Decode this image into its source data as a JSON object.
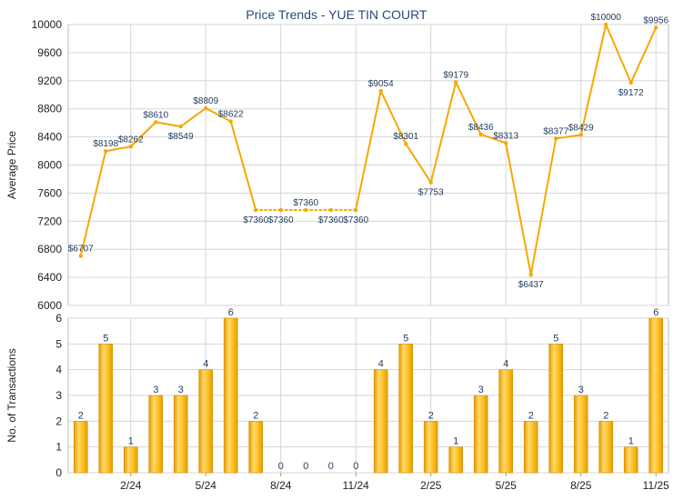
{
  "chart_data": [
    {
      "type": "line",
      "title": "Price Trends - YUE TIN COURT",
      "ylabel": "Average Price",
      "ylim": [
        6000,
        10000
      ],
      "yticks": [
        6000,
        6400,
        6800,
        7200,
        7600,
        8000,
        8400,
        8800,
        9200,
        9600,
        10000
      ],
      "grid": true,
      "series": [
        {
          "values": [
            6707,
            8198,
            8262,
            8610,
            8549,
            8809,
            8622,
            7360,
            7360,
            7360,
            7360,
            7360,
            9054,
            8301,
            7753,
            9179,
            8436,
            8313,
            6437,
            8377,
            8429,
            10000,
            9172,
            9956
          ],
          "labels": [
            "$6707",
            "$8198",
            "$8262",
            "$8610",
            "$8549",
            "$8809",
            "$8622",
            "$7360",
            "$7360",
            "$7360",
            "$7360",
            "$7360",
            "$9054",
            "$8301",
            "$7753",
            "$9179",
            "$8436",
            "$8313",
            "$6437",
            "$8377",
            "$8429",
            "$10000",
            "$9172",
            "$9956"
          ],
          "estimated": [
            false,
            false,
            false,
            false,
            false,
            false,
            false,
            false,
            true,
            true,
            true,
            false,
            false,
            false,
            false,
            false,
            false,
            false,
            false,
            false,
            false,
            false,
            false,
            false
          ],
          "color": "#f5a800"
        }
      ]
    },
    {
      "type": "bar",
      "ylabel": "No. of Transactions",
      "ylim": [
        0,
        6
      ],
      "yticks": [
        0,
        1,
        2,
        3,
        4,
        5,
        6
      ],
      "grid": true,
      "x_tick_labels": [
        {
          "index": 2,
          "label": "2/24"
        },
        {
          "index": 5,
          "label": "5/24"
        },
        {
          "index": 8,
          "label": "8/24"
        },
        {
          "index": 11,
          "label": "11/24"
        },
        {
          "index": 14,
          "label": "2/25"
        },
        {
          "index": 17,
          "label": "5/25"
        },
        {
          "index": 20,
          "label": "8/25"
        },
        {
          "index": 23,
          "label": "11/25"
        }
      ],
      "series": [
        {
          "values": [
            2,
            5,
            1,
            3,
            3,
            4,
            6,
            2,
            0,
            0,
            0,
            0,
            4,
            5,
            2,
            1,
            3,
            4,
            2,
            5,
            3,
            2,
            1,
            6
          ],
          "color": "#f5b400"
        }
      ]
    }
  ]
}
